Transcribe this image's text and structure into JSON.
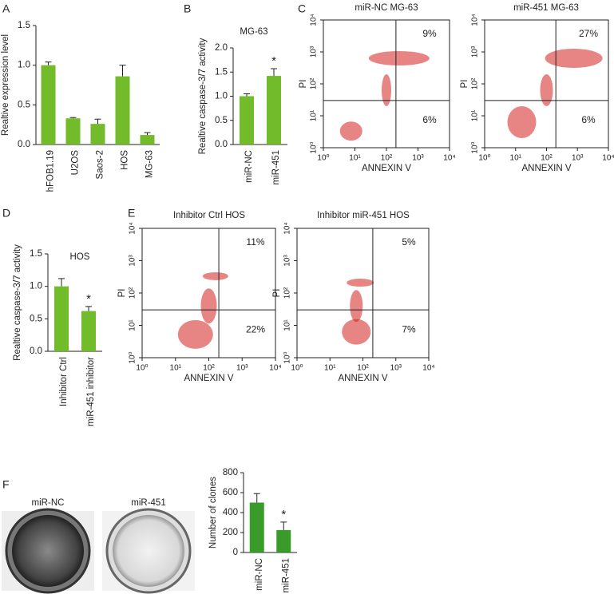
{
  "chart_data": [
    {
      "type": "bar",
      "panel": "A",
      "ylabel": "Realtive expression level",
      "color": "#72bb2a",
      "categories": [
        "hFOB1.19",
        "U2OS",
        "Saos-2",
        "HOS",
        "MG-63"
      ],
      "values": [
        1.0,
        0.33,
        0.26,
        0.86,
        0.12
      ],
      "errors": [
        0.04,
        0.01,
        0.06,
        0.14,
        0.03
      ],
      "ylim": [
        0,
        1.5
      ],
      "yticks": [
        {
          "value": 0,
          "label": "0.0"
        },
        {
          "value": 0.5,
          "label": "0.5"
        },
        {
          "value": 1,
          "label": "1.0"
        },
        {
          "value": 1.5,
          "label": "1.5"
        }
      ]
    },
    {
      "type": "bar",
      "panel": "B",
      "title": "MG-63",
      "ylabel": "Realtive caspase-3/7 activity",
      "color": "#72bb2a",
      "categories": [
        "miR-NC",
        "miR-451"
      ],
      "values": [
        1.0,
        1.42
      ],
      "errors": [
        0.05,
        0.15
      ],
      "markers": [
        null,
        "*"
      ],
      "ylim": [
        0,
        2
      ],
      "yticks": [
        {
          "value": 0,
          "label": "0.0"
        },
        {
          "value": 0.5,
          "label": "0.5"
        },
        {
          "value": 1,
          "label": "1.0"
        },
        {
          "value": 1.5,
          "label": "1.5"
        },
        {
          "value": 2,
          "label": "2.0"
        }
      ]
    },
    {
      "type": "scatter",
      "panel": "C",
      "title": "miR-NC MG-63",
      "xlabel": "ANNEXIN V",
      "ylabel": "PI",
      "log_scale": true,
      "color": "#d42020",
      "xlim": [
        1,
        10000
      ],
      "ylim": [
        1,
        10000
      ],
      "gate_x": 200,
      "gate_y": 30,
      "xticks": [
        {
          "value": 1,
          "label": "10⁰"
        },
        {
          "value": 10,
          "label": "10¹"
        },
        {
          "value": 100,
          "label": "10²"
        },
        {
          "value": 1000,
          "label": "10³"
        },
        {
          "value": 10000,
          "label": "10⁴"
        }
      ],
      "yticks": [
        {
          "value": 1,
          "label": "10⁰"
        },
        {
          "value": 10,
          "label": "10¹"
        },
        {
          "value": 100,
          "label": "10²"
        },
        {
          "value": 1000,
          "label": "10³"
        },
        {
          "value": 10000,
          "label": "10⁴"
        }
      ],
      "upper_right_label": "9%",
      "lower_right_label": "6%"
    },
    {
      "type": "scatter",
      "title": "miR-451 MG-63",
      "xlabel": "ANNEXIN V",
      "ylabel": "PI",
      "log_scale": true,
      "color": "#d42020",
      "xlim": [
        1,
        10000
      ],
      "ylim": [
        1,
        10000
      ],
      "gate_x": 200,
      "gate_y": 30,
      "xticks": [
        {
          "value": 1,
          "label": "10⁰"
        },
        {
          "value": 10,
          "label": "10¹"
        },
        {
          "value": 100,
          "label": "10²"
        },
        {
          "value": 1000,
          "label": "10³"
        },
        {
          "value": 10000,
          "label": "10⁴"
        }
      ],
      "yticks": [
        {
          "value": 1,
          "label": "10⁰"
        },
        {
          "value": 10,
          "label": "10¹"
        },
        {
          "value": 100,
          "label": "10²"
        },
        {
          "value": 1000,
          "label": "10³"
        },
        {
          "value": 10000,
          "label": "10⁴"
        }
      ],
      "upper_right_label": "27%",
      "lower_right_label": "6%"
    },
    {
      "type": "bar",
      "panel": "D",
      "title": "HOS",
      "ylabel": "Realtive caspase-3/7 activity",
      "color": "#72bb2a",
      "categories": [
        "Inhibitor Ctrl",
        "miR-451 inhibitor"
      ],
      "values": [
        1.0,
        0.62
      ],
      "errors": [
        0.12,
        0.07
      ],
      "markers": [
        null,
        "*"
      ],
      "ylim": [
        0,
        1.5
      ],
      "yticks": [
        {
          "value": 0,
          "label": "0.0"
        },
        {
          "value": 0.5,
          "label": "0.5"
        },
        {
          "value": 1,
          "label": "1.0"
        },
        {
          "value": 1.5,
          "label": "1.5"
        }
      ]
    },
    {
      "type": "scatter",
      "panel": "E",
      "title": "Inhibitor Ctrl HOS",
      "xlabel": "ANNEXIN V",
      "ylabel": "PI",
      "log_scale": true,
      "color": "#d42020",
      "xlim": [
        1,
        10000
      ],
      "ylim": [
        1,
        10000
      ],
      "gate_x": 200,
      "gate_y": 30,
      "xticks": [
        {
          "value": 1,
          "label": "10⁰"
        },
        {
          "value": 10,
          "label": "10¹"
        },
        {
          "value": 100,
          "label": "10²"
        },
        {
          "value": 1000,
          "label": "10³"
        },
        {
          "value": 10000,
          "label": "10⁴"
        }
      ],
      "yticks": [
        {
          "value": 1,
          "label": "10⁰"
        },
        {
          "value": 10,
          "label": "10¹"
        },
        {
          "value": 100,
          "label": "10²"
        },
        {
          "value": 1000,
          "label": "10³"
        },
        {
          "value": 10000,
          "label": "10⁴"
        }
      ],
      "upper_right_label": "11%",
      "lower_right_label": "22%"
    },
    {
      "type": "scatter",
      "title": "Inhibitor miR-451 HOS",
      "xlabel": "ANNEXIN V",
      "ylabel": "PI",
      "log_scale": true,
      "color": "#d42020",
      "xlim": [
        1,
        10000
      ],
      "ylim": [
        1,
        10000
      ],
      "gate_x": 200,
      "gate_y": 30,
      "xticks": [
        {
          "value": 1,
          "label": "10⁰"
        },
        {
          "value": 10,
          "label": "10¹"
        },
        {
          "value": 100,
          "label": "10²"
        },
        {
          "value": 1000,
          "label": "10³"
        },
        {
          "value": 10000,
          "label": "10⁴"
        }
      ],
      "yticks": [
        {
          "value": 1,
          "label": "10⁰"
        },
        {
          "value": 10,
          "label": "10¹"
        },
        {
          "value": 100,
          "label": "10²"
        },
        {
          "value": 1000,
          "label": "10³"
        },
        {
          "value": 10000,
          "label": "10⁴"
        }
      ],
      "upper_right_label": "5%",
      "lower_right_label": "7%"
    },
    {
      "type": "bar",
      "panel": "F",
      "ylabel": "Number of clones",
      "color": "#3a9a2a",
      "categories": [
        "miR-NC",
        "miR-451"
      ],
      "values": [
        500,
        225
      ],
      "errors": [
        90,
        80
      ],
      "markers": [
        null,
        "*"
      ],
      "ylim": [
        0,
        800
      ],
      "yticks": [
        0,
        200,
        400,
        600,
        800
      ]
    }
  ],
  "image_labels": [
    "miR-NC",
    "miR-451"
  ]
}
